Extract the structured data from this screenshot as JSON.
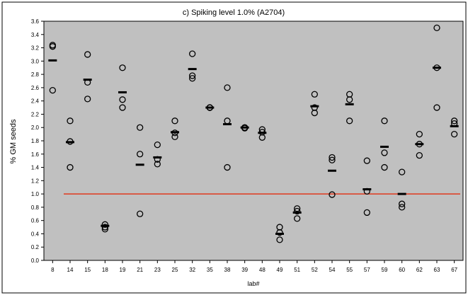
{
  "chart_data": {
    "type": "scatter",
    "title": "c) Spiking level 1.0% (A2704)",
    "xlabel": "lab#",
    "ylabel": "% GM seeds",
    "ylim": [
      0.0,
      3.6
    ],
    "yticks": [
      "0.0",
      "0.2",
      "0.4",
      "0.6",
      "0.8",
      "1.0",
      "1.2",
      "1.4",
      "1.6",
      "1.8",
      "2.0",
      "2.2",
      "2.4",
      "2.6",
      "2.8",
      "3.0",
      "3.2",
      "3.4",
      "3.6"
    ],
    "categories": [
      "8",
      "14",
      "15",
      "18",
      "19",
      "21",
      "23",
      "25",
      "32",
      "35",
      "38",
      "39",
      "48",
      "49",
      "51",
      "52",
      "54",
      "55",
      "57",
      "59",
      "60",
      "62",
      "63",
      "67"
    ],
    "reference_line": 1.0,
    "grid": false,
    "colors": {
      "plot_bg": "#c0c0c0",
      "marker": "#000000",
      "mean": "#000000",
      "reference": "#e03a1e"
    },
    "series": [
      {
        "values": [
          [
            3.22,
            3.24,
            2.56
          ],
          [
            2.1,
            1.79,
            1.4
          ],
          [
            3.1,
            2.68,
            2.43
          ],
          [
            0.54,
            0.5,
            0.47
          ],
          [
            2.9,
            2.42,
            2.3
          ],
          [
            2.0,
            1.6,
            0.7
          ],
          [
            1.74,
            1.52,
            1.45
          ],
          [
            2.1,
            1.92,
            1.86
          ],
          [
            3.11,
            2.78,
            2.74
          ],
          [
            2.3,
            2.3,
            2.3
          ],
          [
            2.6,
            2.1,
            1.4
          ],
          [
            2.0,
            2.0,
            1.99
          ],
          [
            1.97,
            1.93,
            1.85
          ],
          [
            0.5,
            0.42,
            0.31
          ],
          [
            0.78,
            0.74,
            0.63
          ],
          [
            2.5,
            2.3,
            2.22
          ],
          [
            1.55,
            1.51,
            0.99
          ],
          [
            2.5,
            2.42,
            2.1
          ],
          [
            1.5,
            1.04,
            0.72
          ],
          [
            2.1,
            1.62,
            1.4
          ],
          [
            1.33,
            0.85,
            0.8
          ],
          [
            1.9,
            1.75,
            1.58
          ],
          [
            3.5,
            2.9,
            2.3
          ],
          [
            2.1,
            2.06,
            1.9
          ]
        ],
        "means": [
          3.01,
          1.78,
          2.72,
          0.52,
          2.53,
          1.44,
          1.55,
          1.93,
          2.88,
          2.3,
          2.05,
          2.0,
          1.92,
          0.4,
          0.72,
          2.32,
          1.35,
          2.35,
          1.07,
          1.71,
          1.0,
          1.75,
          2.9,
          2.02
        ]
      }
    ]
  }
}
